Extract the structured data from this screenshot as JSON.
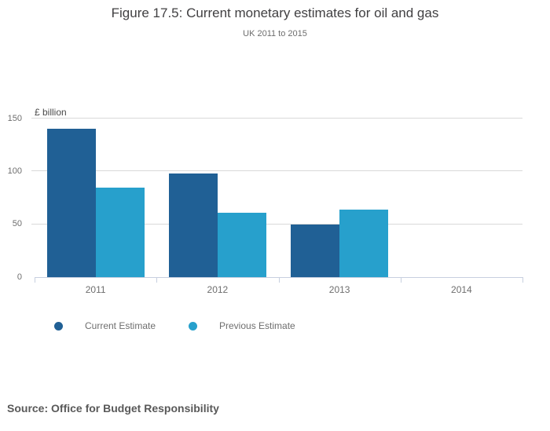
{
  "chart_data": {
    "type": "bar",
    "title": "Figure 17.5: Current monetary estimates for oil and gas",
    "subtitle": "UK 2011 to 2015",
    "ylabel": "£ billion",
    "categories": [
      "2011",
      "2012",
      "2013",
      "2014"
    ],
    "series": [
      {
        "name": "Current Estimate",
        "color": "#206095",
        "values": [
          140,
          98,
          50,
          null
        ]
      },
      {
        "name": "Previous Estimate",
        "color": "#27A0CC",
        "values": [
          85,
          61,
          64,
          null
        ]
      }
    ],
    "yticks": [
      0,
      50,
      100,
      150
    ],
    "ylim": [
      0,
      150
    ],
    "grid": true,
    "legend_position": "bottom-left",
    "source": "Source: Office for Budget Responsibility",
    "colors": {
      "gridline": "#d9d9d9",
      "axis": "#c7cfdf",
      "title_text": "#414042",
      "tick_text": "#6e6e6e",
      "source_text": "#595959"
    }
  }
}
